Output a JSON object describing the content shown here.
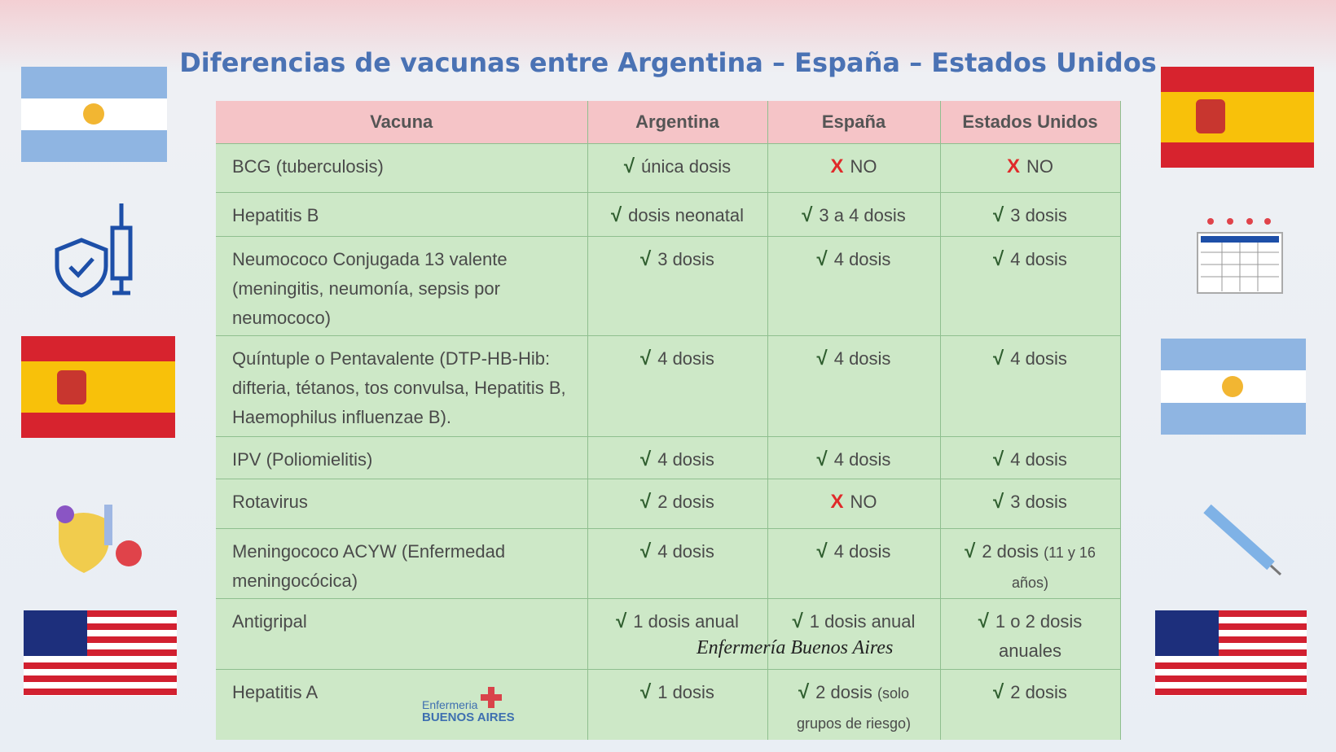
{
  "title": "Diferencias de vacunas entre Argentina – España – Estados Unidos",
  "mark_colors": {
    "√": "#2f5e2f",
    "X": "#e02a2a"
  },
  "table": {
    "headers": [
      "Vacuna",
      "Argentina",
      "España",
      "Estados Unidos"
    ],
    "rows": [
      {
        "vacuna": "BCG (tuberculosis)",
        "cells": [
          {
            "mark": "√",
            "text": "única dosis"
          },
          {
            "mark": "X",
            "text": "NO"
          },
          {
            "mark": "X",
            "text": "NO"
          }
        ]
      },
      {
        "vacuna": "Hepatitis B",
        "cells": [
          {
            "mark": "√",
            "text": "dosis neonatal"
          },
          {
            "mark": "√",
            "text": "3 a 4 dosis"
          },
          {
            "mark": "√",
            "text": "3 dosis"
          }
        ]
      },
      {
        "vacuna": "Neumococo Conjugada 13 valente (meningitis, neumonía, sepsis por neumococo)",
        "cells": [
          {
            "mark": "√",
            "text": "3 dosis"
          },
          {
            "mark": "√",
            "text": "4 dosis"
          },
          {
            "mark": "√",
            "text": "4 dosis"
          }
        ]
      },
      {
        "vacuna": "Quíntuple o Pentavalente (DTP-HB-Hib: difteria, tétanos, tos convulsa, Hepatitis B, Haemophilus influenzae B).",
        "cells": [
          {
            "mark": "√",
            "text": "4 dosis"
          },
          {
            "mark": "√",
            "text": "4 dosis"
          },
          {
            "mark": "√",
            "text": "4 dosis"
          }
        ]
      },
      {
        "vacuna": "IPV (Poliomielitis)",
        "cells": [
          {
            "mark": "√",
            "text": "4 dosis"
          },
          {
            "mark": "√",
            "text": "4 dosis"
          },
          {
            "mark": "√",
            "text": "4 dosis"
          }
        ]
      },
      {
        "vacuna": "Rotavirus",
        "cells": [
          {
            "mark": "√",
            "text": "2 dosis"
          },
          {
            "mark": "X",
            "text": "NO"
          },
          {
            "mark": "√",
            "text": "3 dosis"
          }
        ]
      },
      {
        "vacuna": "Meningococo ACYW (Enfermedad meningocócica)",
        "cells": [
          {
            "mark": "√",
            "text": "4 dosis"
          },
          {
            "mark": "√",
            "text": "4 dosis"
          },
          {
            "mark": "√",
            "text": "2 dosis",
            "note": "(11 y 16 años)"
          }
        ]
      },
      {
        "vacuna": "Antigripal",
        "cells": [
          {
            "mark": "√",
            "text": "1 dosis anual"
          },
          {
            "mark": "√",
            "text": "1 dosis anual"
          },
          {
            "mark": "√",
            "text": "1 o 2 dosis anuales"
          }
        ]
      },
      {
        "vacuna": "Hepatitis A",
        "cells": [
          {
            "mark": "√",
            "text": "1 dosis"
          },
          {
            "mark": "√",
            "text": "2 dosis",
            "note": "(solo grupos de riesgo)"
          },
          {
            "mark": "√",
            "text": "2 dosis"
          }
        ]
      }
    ]
  },
  "watermark": "Enfermería Buenos Aires",
  "logo": {
    "line1": "Enfermeria",
    "line2": "BUENOS AIRES"
  }
}
